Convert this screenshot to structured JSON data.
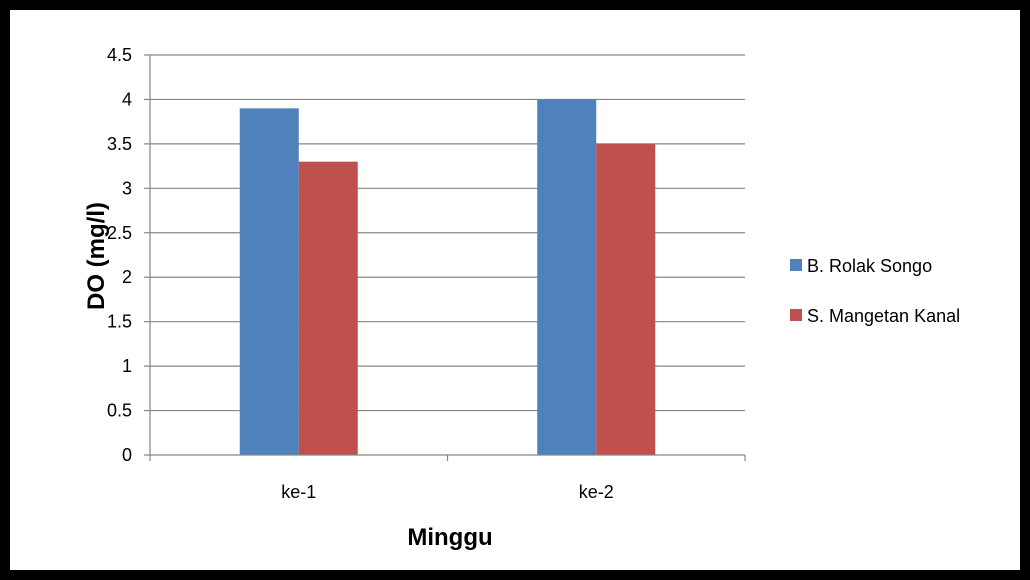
{
  "chart_data": {
    "type": "bar",
    "title": "",
    "xlabel": "Minggu",
    "ylabel": "DO  (mg/l)",
    "categories": [
      "ke-1",
      "ke-2"
    ],
    "series": [
      {
        "name": "B. Rolak Songo",
        "values": [
          3.9,
          4.0
        ],
        "color": "#4F81BD"
      },
      {
        "name": "S. Mangetan Kanal",
        "values": [
          3.3,
          3.5
        ],
        "color": "#C0504D"
      }
    ],
    "ylim": [
      0,
      4.5
    ],
    "yticks": [
      "0",
      "0.5",
      "1",
      "1.5",
      "2",
      "2.5",
      "3",
      "3.5",
      "4",
      "4.5"
    ],
    "grid": true,
    "legend_position": "right"
  }
}
